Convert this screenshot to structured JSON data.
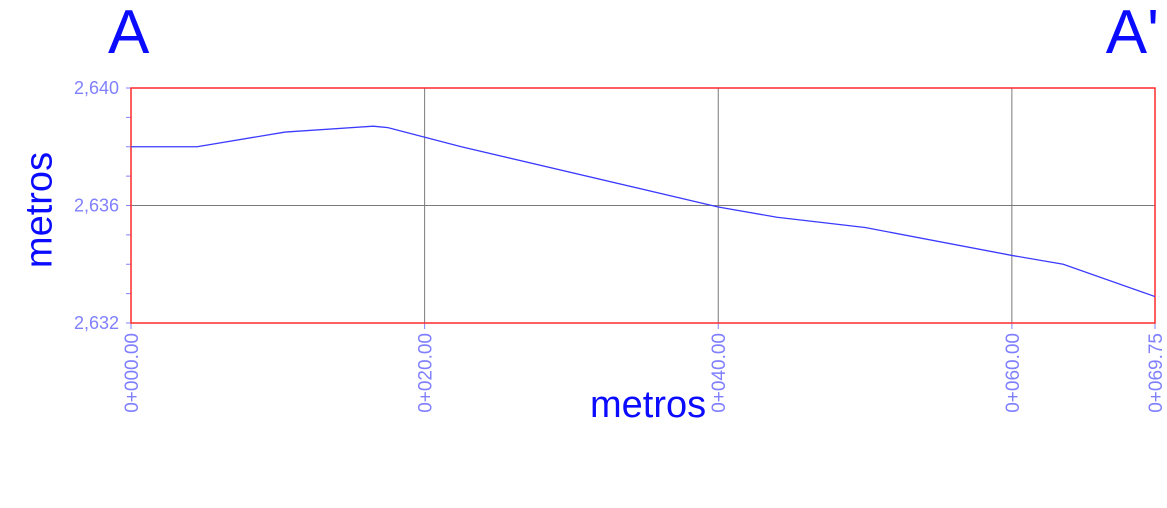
{
  "section_labels": {
    "start": "A",
    "end": "A'"
  },
  "colors": {
    "frame": "#ff2a2a",
    "grid": "#7a7a7a",
    "line": "#3b3bff",
    "tick_text": "#8080ff",
    "label_text": "#0b0bff"
  },
  "chart_data": {
    "type": "line",
    "title": "",
    "xlabel": "metros",
    "ylabel": "metros",
    "xlim": [
      0,
      69.75
    ],
    "ylim": [
      2632,
      2640
    ],
    "grid": true,
    "x_ticks": [
      0,
      20,
      40,
      60,
      69.75
    ],
    "x_tick_labels": [
      "0+000.00",
      "0+020.00",
      "0+040.00",
      "0+060.00",
      "0+069.75"
    ],
    "y_ticks": [
      2632,
      2636,
      2640
    ],
    "y_tick_labels": [
      "2,632",
      "2,636",
      "2,640"
    ],
    "series": [
      {
        "x": [
          0,
          4.5,
          10.5,
          16.5,
          17.5,
          22.5,
          40,
          44,
          50,
          60,
          63.5,
          69.75
        ],
        "y": [
          2638.0,
          2638.0,
          2638.5,
          2638.7,
          2638.65,
          2638.0,
          2635.95,
          2635.6,
          2635.25,
          2634.3,
          2634.0,
          2632.9
        ]
      }
    ]
  }
}
